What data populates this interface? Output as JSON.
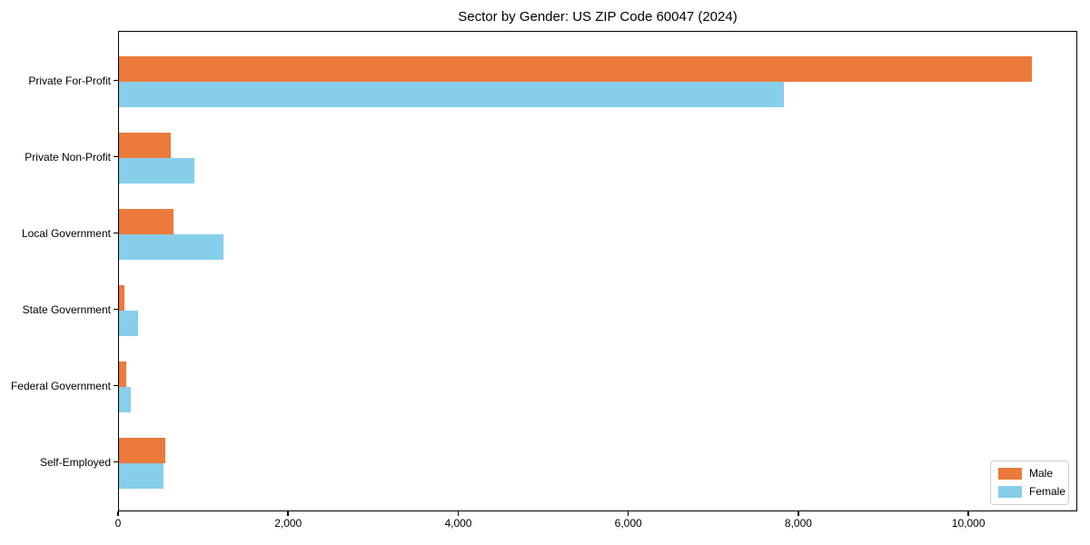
{
  "title": "Sector by Gender: US ZIP Code 60047 (2024)",
  "colors": {
    "male": "#ec7a3c",
    "female": "#87ceeb",
    "spine": "#000000",
    "legend_border": "#cccccc",
    "background": "#ffffff"
  },
  "chart_data": {
    "type": "bar",
    "orientation": "horizontal",
    "title": "Sector by Gender: US ZIP Code 60047 (2024)",
    "xlabel": "",
    "ylabel": "",
    "grid": false,
    "legend_position": "lower right",
    "categories": [
      "Private For-Profit",
      "Private Non-Profit",
      "Local Government",
      "State Government",
      "Federal Government",
      "Self-Employed"
    ],
    "series": [
      {
        "name": "Male",
        "color": "#ec7a3c",
        "values": [
          10730,
          610,
          640,
          65,
          90,
          550
        ]
      },
      {
        "name": "Female",
        "color": "#87ceeb",
        "values": [
          7820,
          885,
          1230,
          225,
          135,
          525
        ]
      }
    ],
    "xlim": [
      0,
      11280
    ],
    "xticks": [
      0,
      2000,
      4000,
      6000,
      8000,
      10000
    ],
    "xtick_labels": [
      "0",
      "2,000",
      "4,000",
      "6,000",
      "8,000",
      "10,000"
    ]
  }
}
